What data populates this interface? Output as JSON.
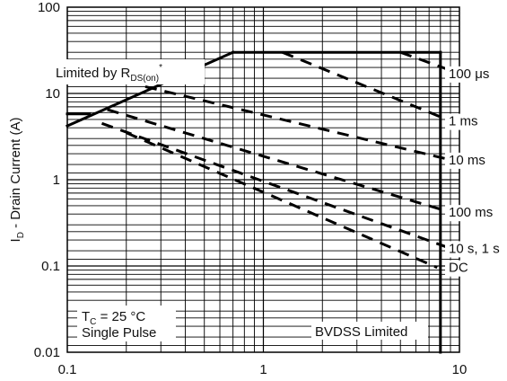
{
  "chart_data": {
    "type": "line",
    "xscale": "log",
    "yscale": "log",
    "xlim": [
      0.1,
      10
    ],
    "ylim": [
      0.01,
      100
    ],
    "grid": true,
    "x_ticks": [
      "0.1",
      "1",
      "10"
    ],
    "y_ticks": [
      "0.01",
      "0.1",
      "1",
      "10",
      "100"
    ],
    "ylabel": "I",
    "ylabel_sub": "D",
    "ylabel_rest": " - Drain Current (A)",
    "xlabel": "",
    "limit_label": "Limited by R",
    "limit_label_sub": "DS(on)",
    "limit_label_sup": "*",
    "conditions": {
      "line1_main": "T",
      "line1_sub": "C",
      "line1_rest": " = 25 °C",
      "line2": "Single Pulse"
    },
    "bvdss_label": "BVDSS Limited",
    "series": [
      {
        "name": "100 μs",
        "points": [
          [
            5.0,
            30.0
          ],
          [
            10.0,
            17.0
          ]
        ]
      },
      {
        "name": "1 ms",
        "points": [
          [
            1.25,
            30.0
          ],
          [
            9.0,
            4.8
          ]
        ]
      },
      {
        "name": "10 ms",
        "points": [
          [
            0.25,
            12.0
          ],
          [
            9.0,
            1.7
          ]
        ]
      },
      {
        "name": "100 ms",
        "points": [
          [
            0.16,
            6.5
          ],
          [
            9.0,
            0.42
          ]
        ]
      },
      {
        "name": "10 s, 1 s",
        "points": [
          [
            0.15,
            4.5
          ],
          [
            9.0,
            0.16
          ]
        ]
      },
      {
        "name": "DC",
        "points": [
          [
            0.2,
            3.5
          ],
          [
            7.7,
            0.096
          ]
        ]
      }
    ],
    "limit_lines": {
      "rds_on": [
        [
          0.1,
          4.2
        ],
        [
          0.7,
          30.0
        ]
      ],
      "current_limit": [
        [
          0.1,
          5.8
        ],
        [
          0.13,
          5.8
        ]
      ],
      "top_limit": [
        [
          0.7,
          30.0
        ],
        [
          8.0,
          30.0
        ]
      ],
      "bvdss": [
        [
          8.0,
          30.0
        ],
        [
          8.0,
          0.01
        ]
      ]
    }
  }
}
